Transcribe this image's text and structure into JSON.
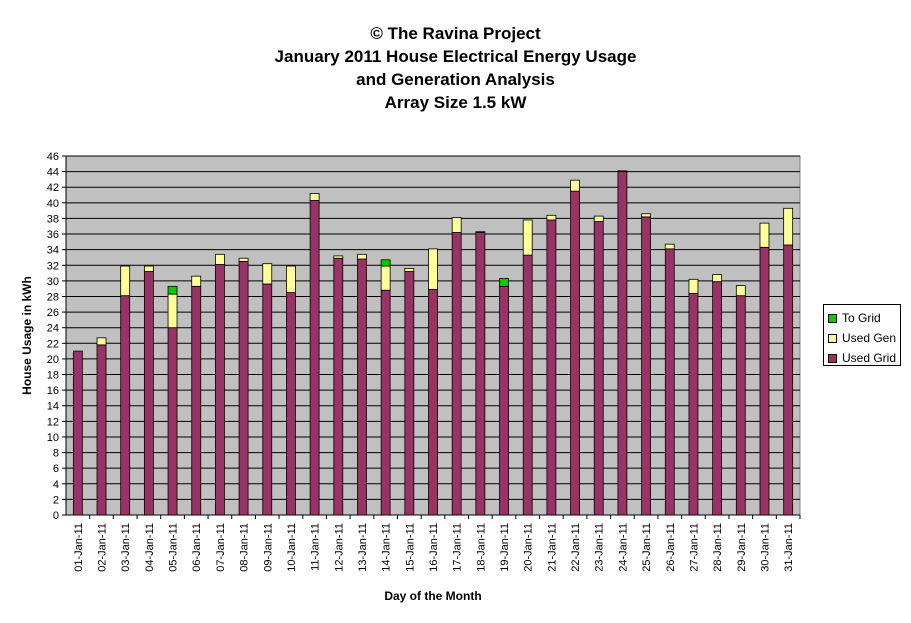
{
  "chart_data": {
    "type": "bar",
    "stacked": true,
    "title_lines": [
      "© The Ravina Project",
      "January 2011 House Electrical Energy Usage",
      "and Generation Analysis",
      "Array Size 1.5 kW"
    ],
    "xlabel": "Day of the Month",
    "ylabel": "House Usage in kWh",
    "ylim": [
      0,
      46
    ],
    "ytick_step": 2,
    "grid": true,
    "legend_position": "right",
    "categories": [
      "01-Jan-11",
      "02-Jan-11",
      "03-Jan-11",
      "04-Jan-11",
      "05-Jan-11",
      "06-Jan-11",
      "07-Jan-11",
      "08-Jan-11",
      "09-Jan-11",
      "10-Jan-11",
      "11-Jan-11",
      "12-Jan-11",
      "13-Jan-11",
      "14-Jan-11",
      "15-Jan-11",
      "16-Jan-11",
      "17-Jan-11",
      "18-Jan-11",
      "19-Jan-11",
      "20-Jan-11",
      "21-Jan-11",
      "22-Jan-11",
      "23-Jan-11",
      "24-Jan-11",
      "25-Jan-11",
      "26-Jan-11",
      "27-Jan-11",
      "28-Jan-11",
      "29-Jan-11",
      "30-Jan-11",
      "31-Jan-11"
    ],
    "series": [
      {
        "name": "Used Grid",
        "color": "#993366",
        "values": [
          21.0,
          21.8,
          28.1,
          31.2,
          24.0,
          29.3,
          32.1,
          32.5,
          29.6,
          28.5,
          40.3,
          32.9,
          32.8,
          28.8,
          31.2,
          28.9,
          36.2,
          36.2,
          29.3,
          33.3,
          37.8,
          41.5,
          37.6,
          44.0,
          38.2,
          34.1,
          28.4,
          29.9,
          28.1,
          34.3,
          34.6
        ]
      },
      {
        "name": "Used Gen",
        "color": "#ffff99",
        "values": [
          0.0,
          0.9,
          3.8,
          0.7,
          4.3,
          1.3,
          1.3,
          0.4,
          2.6,
          3.4,
          0.9,
          0.3,
          0.6,
          3.1,
          0.4,
          5.2,
          1.9,
          0.1,
          0.0,
          4.5,
          0.6,
          1.4,
          0.7,
          0.1,
          0.4,
          0.6,
          1.8,
          0.9,
          1.3,
          3.1,
          4.7
        ]
      },
      {
        "name": "To Grid",
        "color": "#00cc00",
        "values": [
          0,
          0,
          0,
          0,
          1.0,
          0,
          0,
          0,
          0,
          0,
          0,
          0,
          0,
          0.8,
          0,
          0,
          0,
          0,
          1.0,
          0,
          0,
          0,
          0,
          0,
          0,
          0,
          0,
          0,
          0,
          0,
          0
        ]
      }
    ],
    "legend_order": [
      "To Grid",
      "Used Gen",
      "Used Grid"
    ]
  }
}
